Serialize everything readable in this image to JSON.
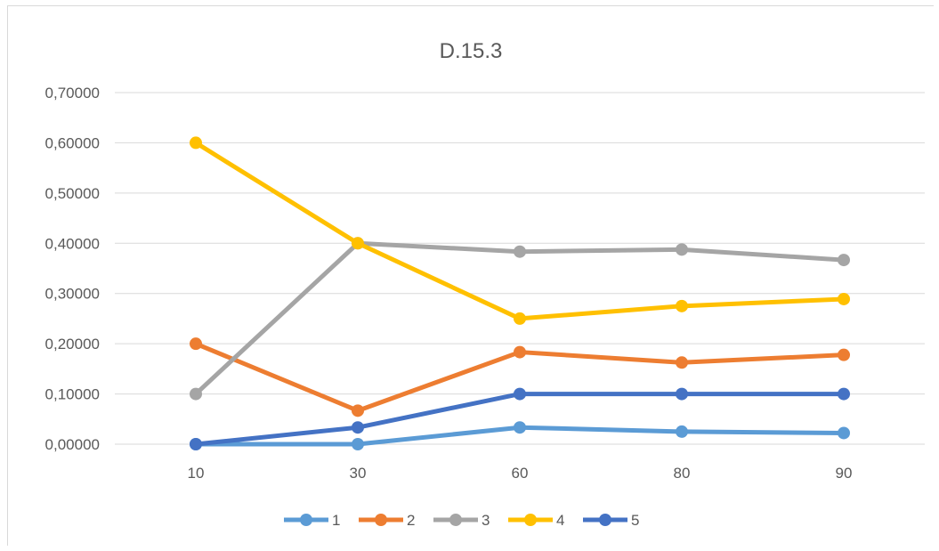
{
  "chart_data": {
    "type": "line",
    "title": "D.15.3",
    "xlabel": "",
    "ylabel": "",
    "categories": [
      "10",
      "30",
      "60",
      "80",
      "90"
    ],
    "yticks": [
      "0,00000",
      "0,10000",
      "0,20000",
      "0,30000",
      "0,40000",
      "0,50000",
      "0,60000",
      "0,70000"
    ],
    "ylim": [
      0,
      0.7
    ],
    "grid": true,
    "legend_position": "bottom",
    "series": [
      {
        "name": "1",
        "color": "#5B9BD5",
        "values": [
          0.0,
          0.0,
          0.0333,
          0.025,
          0.0222
        ]
      },
      {
        "name": "2",
        "color": "#ED7D31",
        "values": [
          0.2,
          0.0667,
          0.1833,
          0.1625,
          0.1778
        ]
      },
      {
        "name": "3",
        "color": "#A5A5A5",
        "values": [
          0.1,
          0.4,
          0.3833,
          0.3875,
          0.3667
        ]
      },
      {
        "name": "4",
        "color": "#FFC000",
        "values": [
          0.6,
          0.4,
          0.25,
          0.275,
          0.2889
        ]
      },
      {
        "name": "5",
        "color": "#4472C4",
        "values": [
          0.0,
          0.0333,
          0.1,
          0.1,
          0.1
        ]
      }
    ]
  }
}
